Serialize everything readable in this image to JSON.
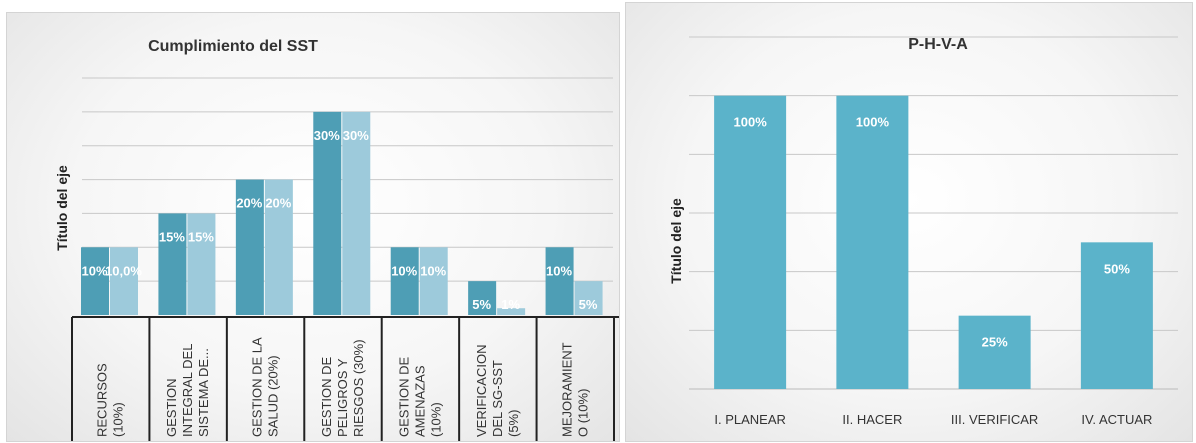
{
  "charts": [
    {
      "chart_data": {
        "type": "bar",
        "title": "Cumplimiento del SST",
        "ylabel": "Título del eje",
        "xlabel": "",
        "categories": [
          [
            "RECURSOS",
            "(10%)"
          ],
          [
            "GESTION",
            "INTEGRAL DEL",
            "SISTEMA DE..."
          ],
          [
            "GESTION DE LA",
            "SALUD (20%)"
          ],
          [
            "GESTION DE",
            "PELIGROS Y",
            "RIESGOS (30%)"
          ],
          [
            "GESTION DE",
            "AMENAZAS",
            "(10%)"
          ],
          [
            "VERIFICACION",
            "DEL SG-SST",
            "(5%)"
          ],
          [
            "MEJORAMIENT",
            "O (10%)"
          ]
        ],
        "series": [
          {
            "values": [
              10,
              15,
              20,
              30,
              10,
              5,
              10
            ],
            "labels": [
              "10%",
              "15%",
              "20%",
              "30%",
              "10%",
              "5%",
              "10%"
            ],
            "color": "#4e9eb5"
          },
          {
            "values": [
              10,
              15,
              20,
              30,
              10,
              1,
              5
            ],
            "labels": [
              "10,0%",
              "15%",
              "20%",
              "30%",
              "10%",
              "1%",
              "5%"
            ],
            "color": "#9dcadb"
          }
        ],
        "ylim": [
          0,
          35
        ],
        "grid": true,
        "legend": "none"
      }
    },
    {
      "chart_data": {
        "type": "bar",
        "title": "P-H-V-A",
        "ylabel": "Título del eje",
        "xlabel": "",
        "categories": [
          [
            "I. PLANEAR"
          ],
          [
            "II. HACER"
          ],
          [
            "III. VERIFICAR"
          ],
          [
            "IV. ACTUAR"
          ]
        ],
        "series": [
          {
            "values": [
              100,
              100,
              25,
              50
            ],
            "labels": [
              "100%",
              "100%",
              "25%",
              "50%"
            ],
            "color": "#5bb3ca"
          }
        ],
        "ylim": [
          0,
          120
        ],
        "grid": true,
        "legend": "none"
      }
    }
  ]
}
